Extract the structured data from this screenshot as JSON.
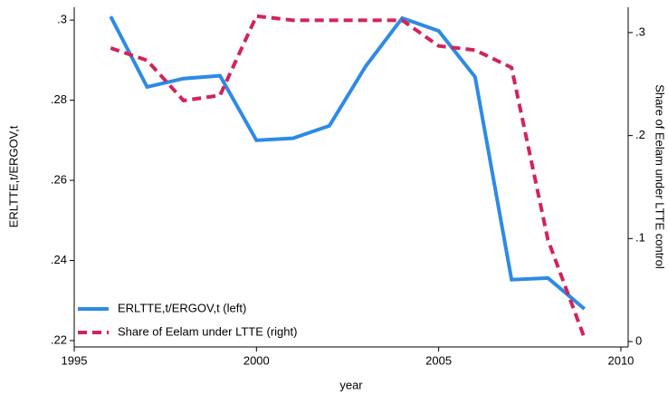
{
  "chart_data": {
    "type": "line",
    "x": [
      1996,
      1997,
      1998,
      1999,
      2000,
      2001,
      2002,
      2003,
      2004,
      2005,
      2006,
      2007,
      2008,
      2009
    ],
    "series": [
      {
        "name": "ERLTTE,t/ERGOV,t (left)",
        "color": "#2e8ae6",
        "dash": false,
        "axis": "y",
        "values": [
          0.3009,
          0.2833,
          0.2854,
          0.2861,
          0.27,
          0.2705,
          0.2736,
          0.2885,
          0.3005,
          0.2973,
          0.2858,
          0.2352,
          0.2356,
          0.2279
        ]
      },
      {
        "name": "Share of Eelam under LTTE (right)",
        "color": "#d1245a",
        "dash": true,
        "axis": "y2",
        "values": [
          0.285,
          0.273,
          0.234,
          0.239,
          0.316,
          0.312,
          0.312,
          0.312,
          0.312,
          0.287,
          0.283,
          0.266,
          0.0985,
          0.0035
        ]
      }
    ],
    "xlabel": "year",
    "ylabel": "ERLTTE,t/ERGOV,t",
    "y2label": "Share of Eelam under LTTE control",
    "xlim": [
      1995,
      2010.2
    ],
    "xticks": [
      1995,
      2000,
      2005,
      2010
    ],
    "ylim": [
      0.2184,
      0.3032
    ],
    "yticks": [
      {
        "value": 0.22,
        "label": ".22"
      },
      {
        "value": 0.24,
        "label": ".24"
      },
      {
        "value": 0.26,
        "label": ".26"
      },
      {
        "value": 0.28,
        "label": ".28"
      },
      {
        "value": 0.3,
        "label": ".3"
      }
    ],
    "y2lim": [
      -0.0053,
      0.3246
    ],
    "y2ticks": [
      0,
      {
        "value": 0.1,
        "label": ".1"
      },
      {
        "value": 0.2,
        "label": ".2"
      },
      {
        "value": 0.3,
        "label": ".3"
      }
    ],
    "legend": "lower left",
    "grid": false
  }
}
